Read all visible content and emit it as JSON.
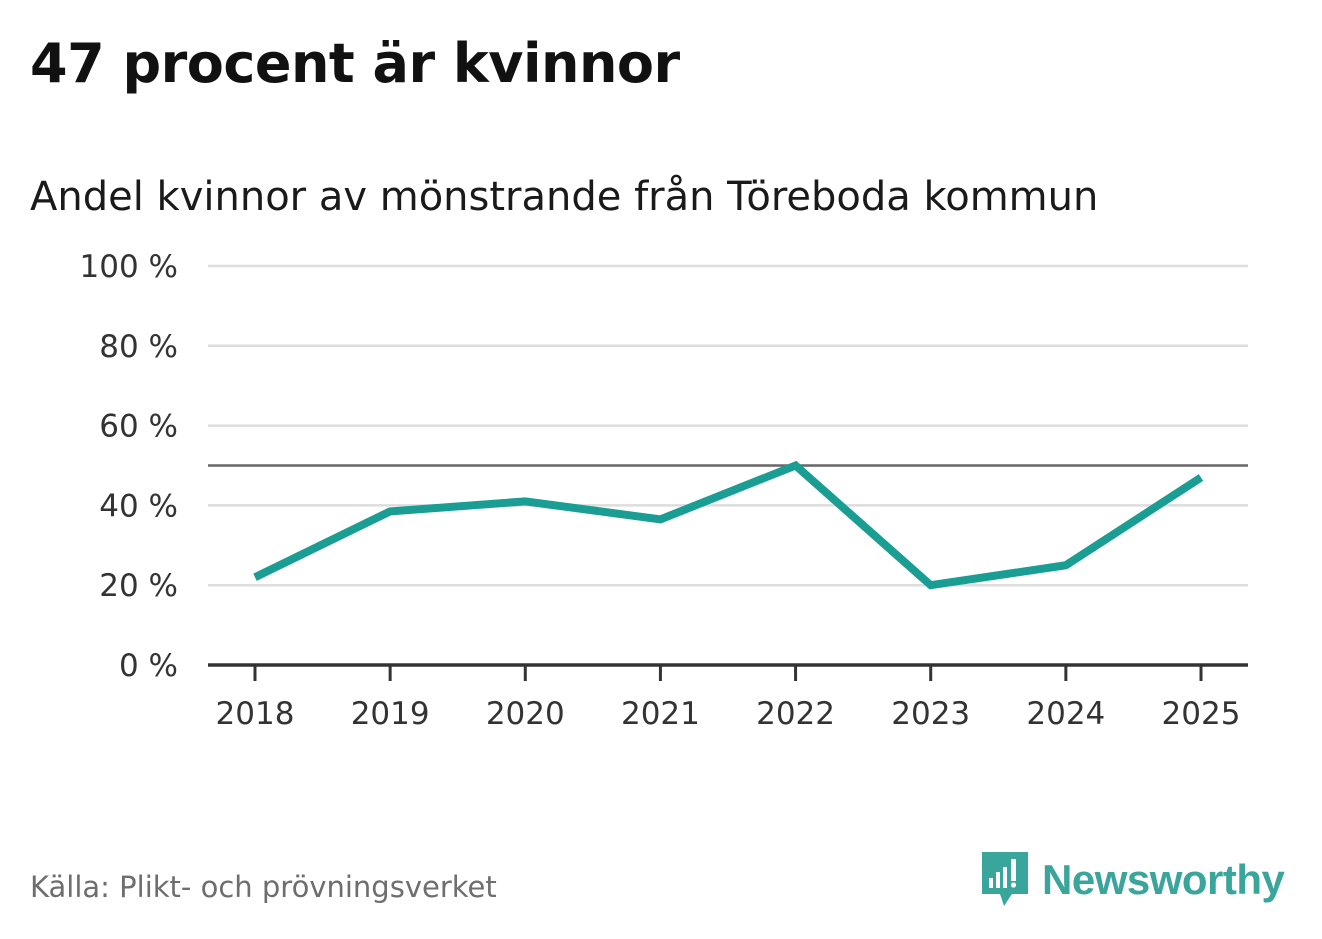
{
  "title": "47 procent är kvinnor",
  "source": "Källa: Plikt- och prövningsverket",
  "brand": {
    "name": "Newsworthy",
    "icon": "newsworthy-logo-icon",
    "color": "#3aa59b"
  },
  "colors": {
    "line": "#1a9e93",
    "grid": "#dddddd",
    "reference": "#666666",
    "axis": "#333333"
  },
  "chart_data": {
    "type": "line",
    "title": "Andel kvinnor av mönstrande från Töreboda kommun",
    "xlabel": "",
    "ylabel": "",
    "ylim": [
      0,
      100
    ],
    "yticks": [
      0,
      20,
      40,
      60,
      80,
      100
    ],
    "ytick_labels": [
      "0 %",
      "20 %",
      "40 %",
      "60 %",
      "80 %",
      "100 %"
    ],
    "categories": [
      "2018",
      "2019",
      "2020",
      "2021",
      "2022",
      "2023",
      "2024",
      "2025"
    ],
    "series": [
      {
        "name": "Andel kvinnor",
        "values": [
          22,
          38.5,
          41,
          36.5,
          50,
          20,
          25,
          47
        ]
      }
    ],
    "reference_line": 50,
    "grid": true
  }
}
